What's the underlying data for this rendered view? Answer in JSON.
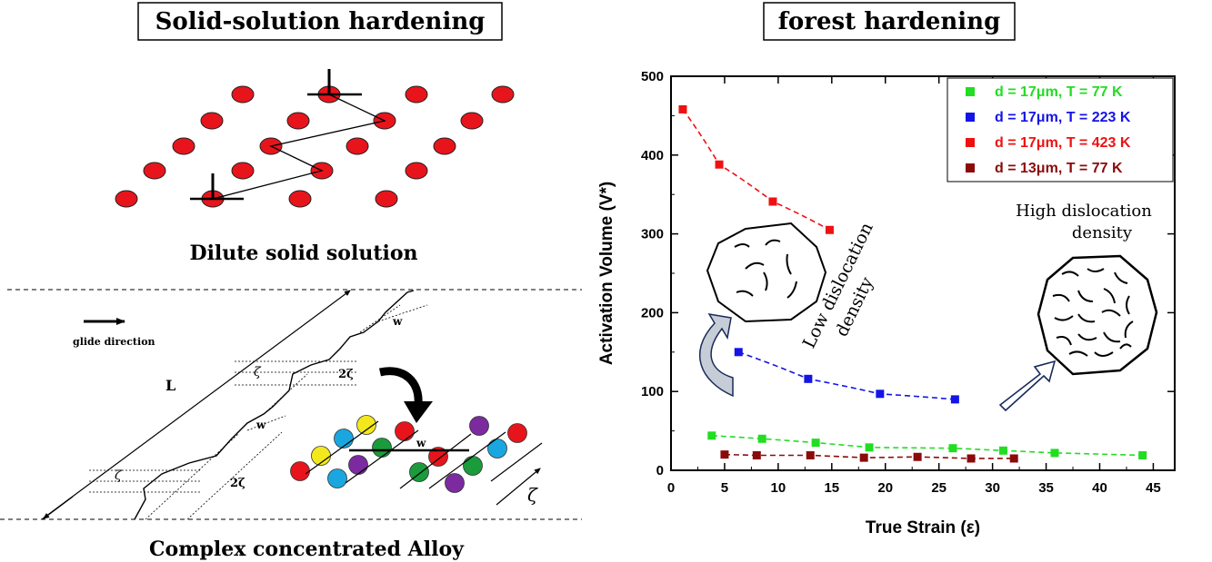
{
  "left_panel": {
    "title": "Solid-solution hardening",
    "dilute_caption": "Dilute solid solution",
    "complex_caption": "Complex concentrated Alloy",
    "glide_label": "glide direction",
    "line_label": "L",
    "w_label": "w",
    "zeta_label": "ζ",
    "two_zeta_label": "2ζ",
    "atom_color": "#e8141c",
    "alloy_colors": [
      "#e8141c",
      "#f2e81c",
      "#1aa7e0",
      "#1a9b3c",
      "#7b2aa0"
    ]
  },
  "right_panel": {
    "title": "forest hardening",
    "low_density_label": [
      "Low dislocation",
      "density"
    ],
    "high_density_label": [
      "High dislocation",
      "density"
    ]
  },
  "chart_data": {
    "type": "scatter",
    "xlabel": "True Strain (ε)",
    "ylabel": "Activation Volume (V*)",
    "xlim": [
      0,
      47
    ],
    "ylim": [
      0,
      500
    ],
    "x_ticks": [
      "0",
      "5",
      "10",
      "15",
      "20",
      "25",
      "30",
      "35",
      "40",
      "45"
    ],
    "y_ticks": [
      "0",
      "100",
      "200",
      "300",
      "400",
      "500"
    ],
    "legend_position": "top-right",
    "series": [
      {
        "name": "d = 17μm, T = 77 K",
        "color": "#22dd22",
        "x": [
          3.8,
          8.5,
          13.5,
          18.5,
          26.3,
          31,
          35.8,
          44
        ],
        "y": [
          44,
          40,
          35,
          29,
          28,
          25,
          22,
          19
        ]
      },
      {
        "name": "d = 17μm, T = 223 K",
        "color": "#1414e6",
        "x": [
          6.3,
          12.8,
          19.5,
          26.5
        ],
        "y": [
          150,
          116,
          97,
          90
        ]
      },
      {
        "name": "d = 17μm, T = 423 K",
        "color": "#ee1111",
        "x": [
          1.1,
          4.5,
          9.5,
          14.8
        ],
        "y": [
          458,
          388,
          341,
          305
        ]
      },
      {
        "name": "d = 13μm, T = 77 K",
        "color": "#8b0a0a",
        "x": [
          5,
          8,
          13,
          18,
          23,
          28,
          32
        ],
        "y": [
          20,
          19,
          19,
          16,
          17,
          15,
          15
        ]
      }
    ]
  }
}
